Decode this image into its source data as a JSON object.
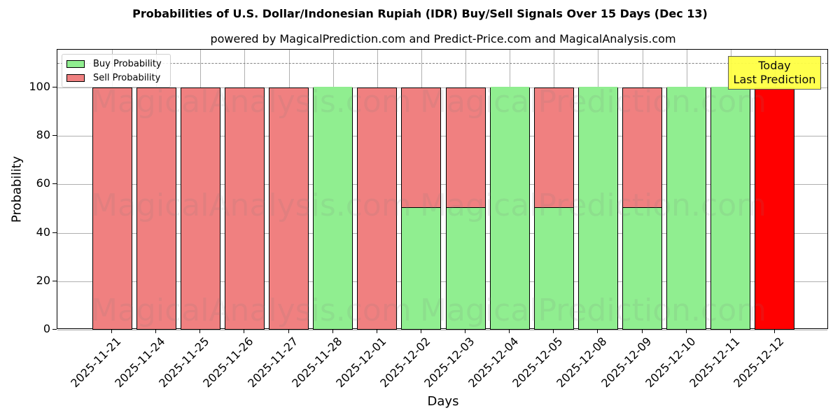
{
  "title": "Probabilities of U.S. Dollar/Indonesian Rupiah (IDR) Buy/Sell Signals Over 15 Days (Dec 13)",
  "subtitle": "powered by MagicalPrediction.com and Predict-Price.com and MagicalAnalysis.com",
  "legend": {
    "buy_label": "Buy Probability",
    "sell_label": "Sell Probability"
  },
  "annotation": {
    "line1": "Today",
    "line2": "Last Prediction"
  },
  "watermarks": [
    "MagicalAnalysis.com",
    "MagicalPrediction.com"
  ],
  "colors": {
    "buy": "#90ee90",
    "sell": "#f08080",
    "today": "#ff0000",
    "annotation_bg": "#ffff44",
    "reference_line": "#808080"
  },
  "chart_data": {
    "type": "bar",
    "stacked": true,
    "title": "Probabilities of U.S. Dollar/Indonesian Rupiah (IDR) Buy/Sell Signals Over 15 Days (Dec 13)",
    "subtitle": "powered by MagicalPrediction.com and Predict-Price.com and MagicalAnalysis.com",
    "xlabel": "Days",
    "ylabel": "Probability",
    "ylim": [
      0,
      115
    ],
    "yticks": [
      0,
      20,
      40,
      60,
      80,
      100
    ],
    "grid": true,
    "legend_position": "upper left",
    "reference_line": {
      "y": 110,
      "style": "dashed"
    },
    "categories": [
      "2025-11-21",
      "2025-11-24",
      "2025-11-25",
      "2025-11-26",
      "2025-11-27",
      "2025-11-28",
      "2025-12-01",
      "2025-12-02",
      "2025-12-03",
      "2025-12-04",
      "2025-12-05",
      "2025-12-08",
      "2025-12-09",
      "2025-12-10",
      "2025-12-11",
      "2025-12-12"
    ],
    "series": [
      {
        "name": "Buy Probability",
        "values": [
          0,
          0,
          0,
          0,
          0,
          100,
          0,
          50,
          50,
          100,
          50,
          100,
          50,
          100,
          100,
          0
        ]
      },
      {
        "name": "Sell Probability",
        "values": [
          100,
          100,
          100,
          100,
          100,
          0,
          100,
          50,
          50,
          0,
          50,
          0,
          50,
          0,
          0,
          0
        ]
      }
    ],
    "today_bar": {
      "category": "2025-12-12",
      "value": 100,
      "color": "#ff0000",
      "label": "Today Last Prediction"
    }
  }
}
